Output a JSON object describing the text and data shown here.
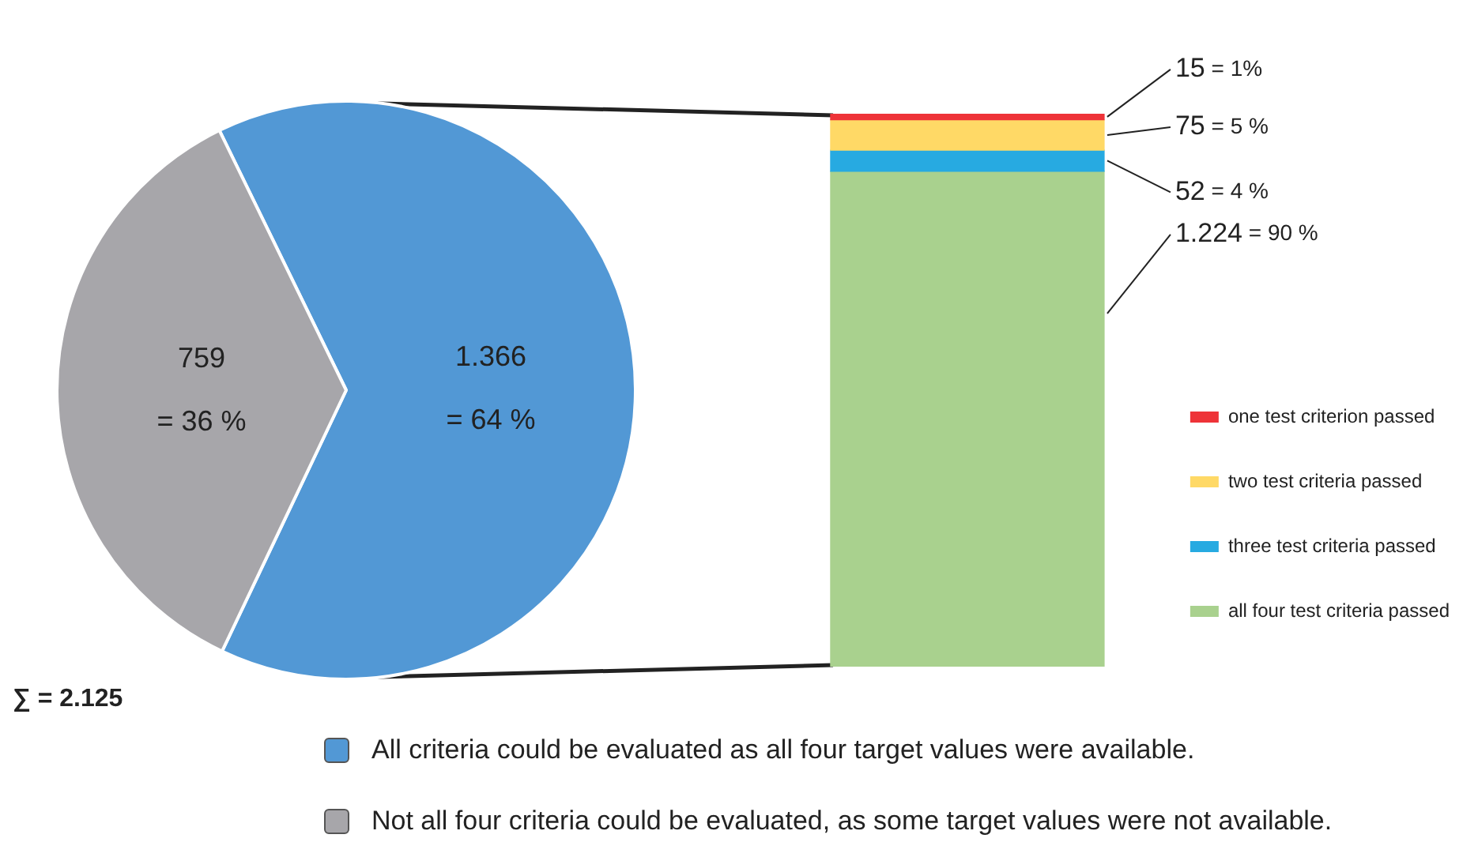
{
  "chart_data": [
    {
      "type": "pie",
      "categories": [
        "All criteria could be evaluated as all four target values were available.",
        "Not all four criteria could be evaluated, as some target values were not available."
      ],
      "values": [
        1366,
        759
      ],
      "colors": [
        "#5298d5",
        "#a7a6aa"
      ],
      "value_labels": [
        "1.366\n= 64 %",
        "759\n= 36 %"
      ],
      "legend": "bottom",
      "annotations": [
        "∑ = 2.125"
      ]
    },
    {
      "type": "bar",
      "stacked": true,
      "categories": [
        null
      ],
      "legend": "right",
      "series": [
        {
          "name": "all four test criteria passed",
          "color": "#a9d18e",
          "values": [
            1224
          ],
          "value_labels": [
            "1.224 = 90 %"
          ]
        },
        {
          "name": "three test criteria passed",
          "color": "#27aae1",
          "values": [
            52
          ],
          "value_labels": [
            "52 = 4 %"
          ]
        },
        {
          "name": "two test criteria passed",
          "color": "#ffd966",
          "values": [
            75
          ],
          "value_labels": [
            "75 = 5 %"
          ]
        },
        {
          "name": "one test criterion passed",
          "color": "#ee3338",
          "values": [
            15
          ],
          "value_labels": [
            "15 = 1%"
          ]
        }
      ]
    }
  ]
}
